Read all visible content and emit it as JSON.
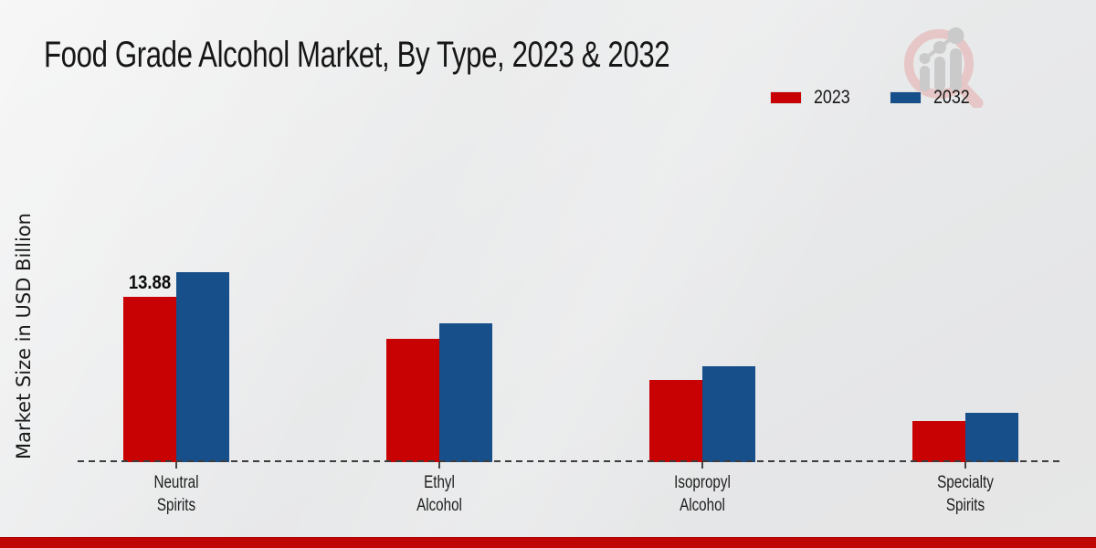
{
  "title": "Food Grade Alcohol Market, By Type, 2023 & 2032",
  "ylabel": "Market Size in USD Billion",
  "legend": {
    "items": [
      {
        "label": "2023",
        "color": "#c80202"
      },
      {
        "label": "2032",
        "color": "#174f8b"
      }
    ]
  },
  "colors": {
    "bar_2023": "#c80202",
    "bar_2032": "#174f8b",
    "footer_bar": "#c00505",
    "baseline": "#3d3d3d"
  },
  "watermark_icon": "magnifier-bar-chart-logo",
  "chart_data": {
    "type": "bar",
    "categories": [
      "Neutral\nSpirits",
      "Ethyl\nAlcohol",
      "Isopropyl\nAlcohol",
      "Specialty\nSpirits"
    ],
    "series": [
      {
        "name": "2023",
        "color": "#c80202",
        "values": [
          13.88,
          10.35,
          6.85,
          3.45
        ]
      },
      {
        "name": "2032",
        "color": "#174f8b",
        "values": [
          15.95,
          11.6,
          8.0,
          4.15
        ]
      }
    ],
    "title": "Food Grade Alcohol Market, By Type, 2023 & 2032",
    "xlabel": "",
    "ylabel": "Market Size in USD Billion",
    "ylim": [
      0,
      28
    ],
    "grid": false,
    "legend_position": "top-right",
    "baseline_style": "dashed",
    "annotations": [
      {
        "series_index": 0,
        "category_index": 0,
        "text": "13.88"
      }
    ]
  }
}
